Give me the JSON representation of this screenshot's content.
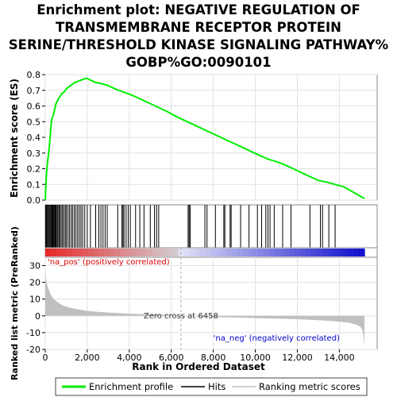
{
  "title_lines": [
    "Enrichment plot: NEGATIVE REGULATION OF",
    "TRANSMEMBRANE RECEPTOR PROTEIN",
    "SERINE/THRESHOLD KINASE SIGNALING PATHWAY%",
    "GOBP%GO:0090101"
  ],
  "colors": {
    "es_line": "#00ee00",
    "hits": "#000000",
    "metric_fill": "#c0c0c0",
    "pos_label": "#dd0000",
    "neg_label": "#0000cc",
    "zero_line": "#aaaaaa"
  },
  "chart_data": [
    {
      "type": "line",
      "name": "enrichment-profile",
      "ylabel": "Enrichment score (ES)",
      "xlim": [
        0,
        15800
      ],
      "ylim": [
        0,
        0.8
      ],
      "yticks": [
        "0.0",
        "0.1",
        "0.2",
        "0.3",
        "0.4",
        "0.5",
        "0.6",
        "0.7",
        "0.8"
      ],
      "grid": true,
      "x": [
        0,
        50,
        100,
        150,
        200,
        250,
        300,
        350,
        400,
        450,
        500,
        600,
        700,
        800,
        900,
        1000,
        1100,
        1200,
        1300,
        1400,
        1500,
        1600,
        1700,
        1800,
        1900,
        2000,
        2200,
        2400,
        2600,
        2800,
        3000,
        3400,
        3800,
        4200,
        4600,
        5000,
        5400,
        5800,
        6200,
        6600,
        7000,
        7400,
        7800,
        8200,
        8600,
        9000,
        9400,
        9800,
        10200,
        10600,
        11000,
        11400,
        11800,
        12200,
        12600,
        13000,
        13400,
        13800,
        14200,
        14600,
        15000,
        15200
      ],
      "y": [
        0.0,
        0.15,
        0.23,
        0.29,
        0.35,
        0.43,
        0.51,
        0.53,
        0.55,
        0.58,
        0.61,
        0.64,
        0.66,
        0.68,
        0.69,
        0.71,
        0.72,
        0.73,
        0.74,
        0.75,
        0.755,
        0.76,
        0.765,
        0.77,
        0.775,
        0.775,
        0.762,
        0.75,
        0.745,
        0.738,
        0.73,
        0.705,
        0.685,
        0.665,
        0.64,
        0.615,
        0.59,
        0.565,
        0.535,
        0.51,
        0.485,
        0.46,
        0.435,
        0.41,
        0.385,
        0.36,
        0.335,
        0.31,
        0.285,
        0.262,
        0.245,
        0.225,
        0.2,
        0.175,
        0.15,
        0.125,
        0.115,
        0.1,
        0.085,
        0.055,
        0.025,
        0.01
      ]
    },
    {
      "type": "scatter",
      "name": "hits",
      "legend": "Hits",
      "x": [
        20,
        60,
        100,
        140,
        180,
        220,
        260,
        300,
        330,
        360,
        400,
        430,
        470,
        510,
        560,
        600,
        650,
        700,
        760,
        820,
        880,
        950,
        1000,
        1080,
        1150,
        1230,
        1300,
        1380,
        1460,
        1540,
        1620,
        1700,
        1780,
        1880,
        2000,
        2150,
        2400,
        2550,
        2650,
        2750,
        2850,
        2950,
        3450,
        3650,
        3700,
        3750,
        3850,
        3950,
        4050,
        4300,
        4500,
        4700,
        5000,
        5200,
        5300,
        5400,
        6800,
        6850,
        6900,
        7600,
        7700,
        8100,
        8500,
        8550,
        8800,
        8850,
        9300,
        9700,
        10100,
        10300,
        10500,
        10600,
        10700,
        10900,
        11300,
        11700,
        12600,
        13100,
        13200,
        13500,
        13800
      ]
    },
    {
      "type": "area",
      "name": "ranked-list-metric",
      "ylabel": "Ranked list metric (PreRanked)",
      "xlabel": "Rank in Ordered Dataset",
      "xlim": [
        0,
        15800
      ],
      "ylim": [
        -20,
        35
      ],
      "xticks": [
        "0",
        "2,000",
        "4,000",
        "6,000",
        "8,000",
        "10,000",
        "12,000",
        "14,000"
      ],
      "yticks": [
        "30",
        "20",
        "10",
        "0",
        "-10",
        "-20"
      ],
      "x": [
        0,
        30,
        80,
        150,
        250,
        400,
        600,
        800,
        1000,
        1300,
        1600,
        2000,
        2500,
        3000,
        3500,
        4000,
        5000,
        6000,
        6458,
        7000,
        8000,
        9000,
        10000,
        11000,
        12000,
        13000,
        13800,
        14400,
        14800,
        15000,
        15100,
        15150,
        15200
      ],
      "y": [
        30,
        22,
        19,
        16,
        13,
        10,
        8,
        6.5,
        5.5,
        4.5,
        3.8,
        3.0,
        2.4,
        2.0,
        1.6,
        1.3,
        0.9,
        0.4,
        0,
        -0.3,
        -0.7,
        -1.0,
        -1.3,
        -1.6,
        -2.0,
        -2.6,
        -3.2,
        -4.0,
        -5.2,
        -6.5,
        -8.5,
        -12.0,
        -18.0
      ],
      "annotations": {
        "zero_cross_x": 6458,
        "zero_cross_text": "Zero cross at 6458",
        "pos_text": "'na_pos' (positively correlated)",
        "neg_text": "'na_neg' (negatively correlated)"
      }
    }
  ],
  "legend": {
    "items": [
      {
        "label": "Enrichment profile",
        "color": "#00ee00"
      },
      {
        "label": "Hits",
        "color": "#000000"
      },
      {
        "label": "Ranking metric scores",
        "color": "#c0c0c0"
      }
    ],
    "placement": "bottom"
  }
}
